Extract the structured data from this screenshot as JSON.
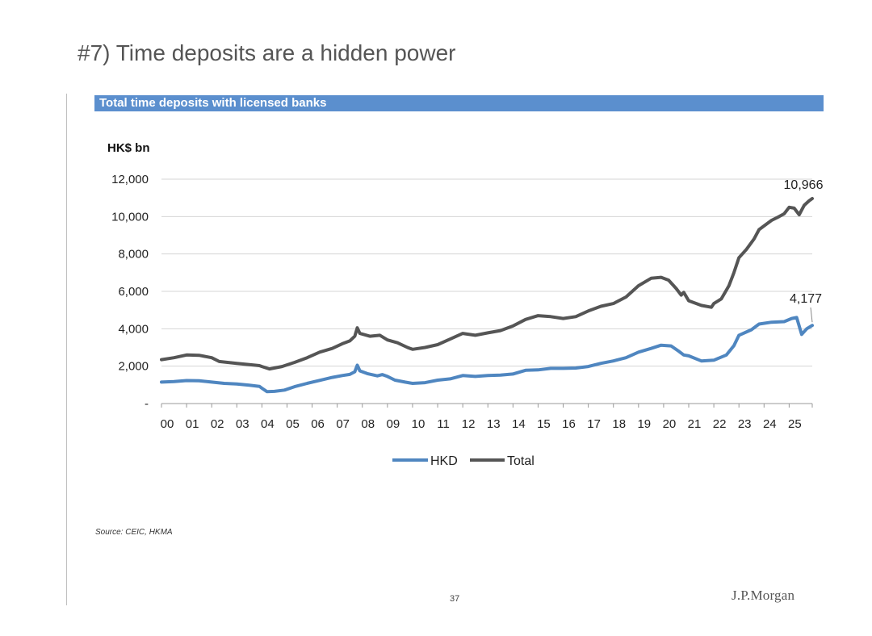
{
  "slide": {
    "title": "#7) Time deposits are a hidden power",
    "source": "Source: CEIC, HKMA",
    "page_number": "37",
    "logo_text": "J.P.Morgan"
  },
  "chart_data": {
    "type": "line",
    "title": "Total time deposits with licensed banks",
    "ylabel": "HK$ bn",
    "xlabel": "",
    "ylim": [
      0,
      12000
    ],
    "yticks": [
      {
        "value": 0,
        "label": "-"
      },
      {
        "value": 2000,
        "label": "2,000"
      },
      {
        "value": 4000,
        "label": "4,000"
      },
      {
        "value": 6000,
        "label": "6,000"
      },
      {
        "value": 8000,
        "label": "8,000"
      },
      {
        "value": 10000,
        "label": "10,000"
      },
      {
        "value": 12000,
        "label": "12,000"
      }
    ],
    "xlim": [
      2000,
      2025.92
    ],
    "xticks": [
      {
        "value": 2000,
        "label": "00"
      },
      {
        "value": 2001,
        "label": "01"
      },
      {
        "value": 2002,
        "label": "02"
      },
      {
        "value": 2003,
        "label": "03"
      },
      {
        "value": 2004,
        "label": "04"
      },
      {
        "value": 2005,
        "label": "05"
      },
      {
        "value": 2006,
        "label": "06"
      },
      {
        "value": 2007,
        "label": "07"
      },
      {
        "value": 2008,
        "label": "08"
      },
      {
        "value": 2009,
        "label": "09"
      },
      {
        "value": 2010,
        "label": "10"
      },
      {
        "value": 2011,
        "label": "11"
      },
      {
        "value": 2012,
        "label": "12"
      },
      {
        "value": 2013,
        "label": "13"
      },
      {
        "value": 2014,
        "label": "14"
      },
      {
        "value": 2015,
        "label": "15"
      },
      {
        "value": 2016,
        "label": "16"
      },
      {
        "value": 2017,
        "label": "17"
      },
      {
        "value": 2018,
        "label": "18"
      },
      {
        "value": 2019,
        "label": "19"
      },
      {
        "value": 2020,
        "label": "20"
      },
      {
        "value": 2021,
        "label": "21"
      },
      {
        "value": 2022,
        "label": "22"
      },
      {
        "value": 2023,
        "label": "23"
      },
      {
        "value": 2024,
        "label": "24"
      },
      {
        "value": 2025,
        "label": "25"
      }
    ],
    "grid": true,
    "legend": "bottom-center",
    "series": [
      {
        "name": "HKD",
        "color": "#4f86c0",
        "points": [
          [
            2000.0,
            1150
          ],
          [
            2000.5,
            1180
          ],
          [
            2001.0,
            1230
          ],
          [
            2001.5,
            1220
          ],
          [
            2002.0,
            1150
          ],
          [
            2002.5,
            1080
          ],
          [
            2003.0,
            1050
          ],
          [
            2003.5,
            980
          ],
          [
            2003.9,
            920
          ],
          [
            2004.0,
            820
          ],
          [
            2004.2,
            640
          ],
          [
            2004.5,
            650
          ],
          [
            2004.9,
            720
          ],
          [
            2005.3,
            900
          ],
          [
            2005.8,
            1080
          ],
          [
            2006.3,
            1240
          ],
          [
            2006.8,
            1400
          ],
          [
            2007.2,
            1500
          ],
          [
            2007.5,
            1560
          ],
          [
            2007.7,
            1700
          ],
          [
            2007.8,
            2050
          ],
          [
            2007.9,
            1750
          ],
          [
            2008.2,
            1600
          ],
          [
            2008.6,
            1480
          ],
          [
            2008.8,
            1550
          ],
          [
            2009.0,
            1450
          ],
          [
            2009.3,
            1250
          ],
          [
            2009.7,
            1150
          ],
          [
            2010.0,
            1080
          ],
          [
            2010.5,
            1120
          ],
          [
            2011.0,
            1250
          ],
          [
            2011.5,
            1320
          ],
          [
            2012.0,
            1500
          ],
          [
            2012.5,
            1450
          ],
          [
            2013.0,
            1500
          ],
          [
            2013.5,
            1520
          ],
          [
            2014.0,
            1580
          ],
          [
            2014.5,
            1780
          ],
          [
            2015.0,
            1800
          ],
          [
            2015.5,
            1880
          ],
          [
            2016.0,
            1880
          ],
          [
            2016.5,
            1900
          ],
          [
            2017.0,
            1980
          ],
          [
            2017.5,
            2150
          ],
          [
            2018.0,
            2280
          ],
          [
            2018.5,
            2450
          ],
          [
            2019.0,
            2750
          ],
          [
            2019.5,
            2950
          ],
          [
            2019.9,
            3120
          ],
          [
            2020.3,
            3080
          ],
          [
            2020.6,
            2800
          ],
          [
            2020.8,
            2600
          ],
          [
            2021.0,
            2550
          ],
          [
            2021.5,
            2280
          ],
          [
            2022.0,
            2320
          ],
          [
            2022.5,
            2600
          ],
          [
            2022.8,
            3100
          ],
          [
            2023.0,
            3650
          ],
          [
            2023.5,
            3950
          ],
          [
            2023.8,
            4250
          ],
          [
            2024.3,
            4350
          ],
          [
            2024.8,
            4380
          ],
          [
            2025.1,
            4550
          ],
          [
            2025.3,
            4600
          ],
          [
            2025.5,
            3700
          ],
          [
            2025.7,
            4000
          ],
          [
            2025.92,
            4177
          ]
        ]
      },
      {
        "name": "Total",
        "color": "#555555",
        "points": [
          [
            2000.0,
            2350
          ],
          [
            2000.5,
            2450
          ],
          [
            2001.0,
            2600
          ],
          [
            2001.5,
            2580
          ],
          [
            2002.0,
            2450
          ],
          [
            2002.3,
            2250
          ],
          [
            2003.0,
            2150
          ],
          [
            2003.5,
            2080
          ],
          [
            2003.9,
            2030
          ],
          [
            2004.0,
            1980
          ],
          [
            2004.3,
            1850
          ],
          [
            2004.8,
            1980
          ],
          [
            2005.3,
            2200
          ],
          [
            2005.8,
            2450
          ],
          [
            2006.3,
            2750
          ],
          [
            2006.8,
            2950
          ],
          [
            2007.2,
            3200
          ],
          [
            2007.5,
            3350
          ],
          [
            2007.7,
            3600
          ],
          [
            2007.8,
            4050
          ],
          [
            2007.9,
            3750
          ],
          [
            2008.3,
            3600
          ],
          [
            2008.7,
            3650
          ],
          [
            2009.0,
            3400
          ],
          [
            2009.4,
            3250
          ],
          [
            2009.8,
            3000
          ],
          [
            2010.0,
            2900
          ],
          [
            2010.5,
            3000
          ],
          [
            2011.0,
            3150
          ],
          [
            2011.5,
            3450
          ],
          [
            2012.0,
            3750
          ],
          [
            2012.5,
            3650
          ],
          [
            2013.0,
            3780
          ],
          [
            2013.5,
            3900
          ],
          [
            2014.0,
            4150
          ],
          [
            2014.5,
            4500
          ],
          [
            2015.0,
            4700
          ],
          [
            2015.5,
            4650
          ],
          [
            2016.0,
            4550
          ],
          [
            2016.5,
            4650
          ],
          [
            2017.0,
            4950
          ],
          [
            2017.5,
            5200
          ],
          [
            2018.0,
            5350
          ],
          [
            2018.5,
            5700
          ],
          [
            2019.0,
            6300
          ],
          [
            2019.5,
            6700
          ],
          [
            2019.9,
            6750
          ],
          [
            2020.2,
            6600
          ],
          [
            2020.5,
            6150
          ],
          [
            2020.7,
            5800
          ],
          [
            2020.8,
            5950
          ],
          [
            2021.0,
            5500
          ],
          [
            2021.5,
            5250
          ],
          [
            2021.9,
            5150
          ],
          [
            2022.0,
            5350
          ],
          [
            2022.3,
            5600
          ],
          [
            2022.6,
            6300
          ],
          [
            2022.8,
            7000
          ],
          [
            2023.0,
            7800
          ],
          [
            2023.3,
            8250
          ],
          [
            2023.6,
            8800
          ],
          [
            2023.8,
            9300
          ],
          [
            2024.0,
            9500
          ],
          [
            2024.3,
            9800
          ],
          [
            2024.6,
            10000
          ],
          [
            2024.8,
            10150
          ],
          [
            2025.0,
            10500
          ],
          [
            2025.2,
            10450
          ],
          [
            2025.4,
            10100
          ],
          [
            2025.6,
            10600
          ],
          [
            2025.8,
            10850
          ],
          [
            2025.92,
            10966
          ]
        ]
      }
    ],
    "annotations": [
      {
        "series": "Total",
        "label": "10,966",
        "x": 2025.92,
        "y": 10966
      },
      {
        "series": "HKD",
        "label": "4,177",
        "x": 2025.92,
        "y": 4177
      }
    ]
  }
}
